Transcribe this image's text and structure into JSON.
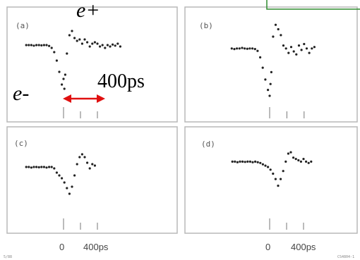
{
  "chart_data": [
    {
      "type": "scatter",
      "panel_label": "(a)",
      "x_unit": "ps",
      "xlim": [
        -440,
        680
      ],
      "ylim": [
        -1.6,
        1.0
      ],
      "x_ticks": [
        0,
        200,
        400
      ],
      "x": [
        -440,
        -410,
        -380,
        -350,
        -320,
        -290,
        -260,
        -230,
        -200,
        -170,
        -140,
        -110,
        -80,
        -50,
        -20,
        0,
        10,
        20,
        40,
        70,
        100,
        130,
        160,
        190,
        220,
        250,
        280,
        310,
        340,
        370,
        400,
        430,
        460,
        490,
        520,
        550,
        580,
        610,
        640,
        670
      ],
      "y": [
        0.1,
        0.1,
        0.1,
        0.08,
        0.1,
        0.1,
        0.09,
        0.1,
        0.1,
        0.07,
        0.0,
        -0.15,
        -0.45,
        -0.85,
        -1.3,
        -1.1,
        -1.45,
        -0.95,
        -0.2,
        0.45,
        0.6,
        0.35,
        0.25,
        0.3,
        0.15,
        0.3,
        0.2,
        0.05,
        0.15,
        0.2,
        0.15,
        0.05,
        0.1,
        0.0,
        0.1,
        0.05,
        0.12,
        0.08,
        0.15,
        0.05
      ]
    },
    {
      "type": "scatter",
      "panel_label": "(b)",
      "x_unit": "ps",
      "xlim": [
        -440,
        440
      ],
      "ylim": [
        -1.6,
        1.0
      ],
      "x_ticks": [
        0,
        200,
        400
      ],
      "x": [
        -440,
        -410,
        -380,
        -350,
        -320,
        -290,
        -260,
        -230,
        -200,
        -170,
        -140,
        -110,
        -80,
        -50,
        -20,
        0,
        10,
        20,
        40,
        70,
        100,
        130,
        160,
        190,
        220,
        250,
        280,
        310,
        340,
        370,
        400,
        430,
        460,
        490,
        520
      ],
      "y": [
        0.1,
        0.08,
        0.1,
        0.1,
        0.12,
        0.1,
        0.09,
        0.1,
        0.1,
        0.08,
        0.02,
        -0.2,
        -0.55,
        -0.95,
        -1.3,
        -1.5,
        -1.1,
        -0.7,
        0.5,
        0.9,
        0.75,
        0.55,
        0.2,
        0.1,
        -0.05,
        0.15,
        0.0,
        -0.1,
        0.2,
        0.05,
        0.25,
        0.1,
        -0.05,
        0.1,
        0.15
      ]
    },
    {
      "type": "scatter",
      "panel_label": "(c)",
      "x_unit": "ps",
      "xlim": [
        -440,
        680
      ],
      "ylim": [
        -1.0,
        1.0
      ],
      "x_ticks": [
        0,
        200,
        400
      ],
      "x": [
        -440,
        -410,
        -380,
        -350,
        -320,
        -290,
        -260,
        -230,
        -200,
        -170,
        -140,
        -110,
        -80,
        -50,
        -20,
        10,
        40,
        70,
        100,
        130,
        160,
        190,
        220,
        250,
        280,
        310,
        340,
        370
      ],
      "y": [
        0.2,
        0.2,
        0.18,
        0.2,
        0.2,
        0.19,
        0.2,
        0.2,
        0.18,
        0.2,
        0.2,
        0.15,
        0.0,
        -0.1,
        -0.2,
        -0.35,
        -0.55,
        -0.75,
        -0.5,
        -0.1,
        0.3,
        0.55,
        0.65,
        0.55,
        0.35,
        0.15,
        0.3,
        0.25
      ]
    },
    {
      "type": "scatter",
      "panel_label": "(d)",
      "x_unit": "ps",
      "xlim": [
        -440,
        680
      ],
      "ylim": [
        -1.0,
        1.0
      ],
      "x_ticks": [
        0,
        200,
        400
      ],
      "x": [
        -440,
        -410,
        -380,
        -350,
        -320,
        -290,
        -260,
        -230,
        -200,
        -170,
        -140,
        -110,
        -80,
        -50,
        -20,
        10,
        40,
        70,
        100,
        130,
        160,
        190,
        220,
        250,
        280,
        310,
        340,
        370,
        400,
        430,
        460,
        490
      ],
      "y": [
        0.2,
        0.2,
        0.18,
        0.2,
        0.2,
        0.19,
        0.2,
        0.2,
        0.18,
        0.2,
        0.18,
        0.15,
        0.1,
        0.05,
        0.0,
        -0.1,
        -0.25,
        -0.45,
        -0.7,
        -0.45,
        -0.15,
        0.2,
        0.5,
        0.55,
        0.35,
        0.3,
        0.25,
        0.2,
        0.3,
        0.2,
        0.15,
        0.2
      ]
    }
  ],
  "annotations": {
    "e_plus": "e+",
    "e_minus": "e-",
    "interval": "400ps",
    "bottom_left_zero": "0",
    "bottom_left_400": "400ps",
    "bottom_right_zero": "0",
    "bottom_right_400": "400ps",
    "corner_code_left": "5/88",
    "corner_code_right": "CS4804-1"
  },
  "colors": {
    "marker": "#222222",
    "frame": "#b8b8b8",
    "axis_tick": "#777777",
    "arrow": "#e01010",
    "legend_box": "#2e8b2e"
  }
}
